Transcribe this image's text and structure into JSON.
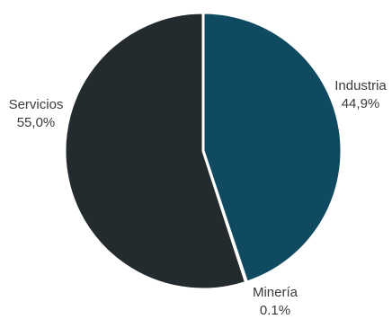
{
  "chart_data": {
    "type": "pie",
    "title": "",
    "slices": [
      {
        "label": "Industria",
        "value_label": "44,9%",
        "value": 44.9,
        "color": "#0f4a61"
      },
      {
        "label": "Minería",
        "value_label": "0.1%",
        "value": 0.1,
        "color": "#f3f3f3"
      },
      {
        "label": "Servicios",
        "value_label": "55,0%",
        "value": 55.0,
        "color": "#242b2e"
      }
    ],
    "legend": "none"
  }
}
